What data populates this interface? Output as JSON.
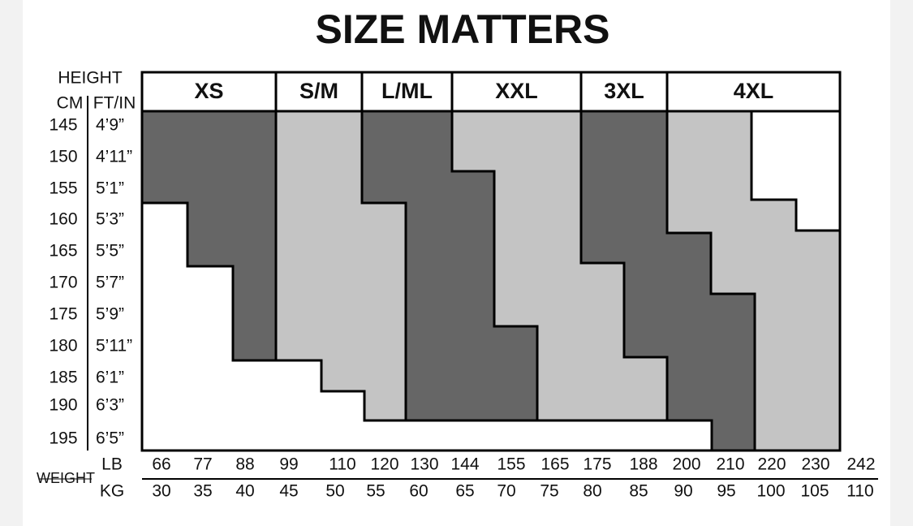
{
  "title": "SIZE MATTERS",
  "height_header": {
    "title": "HEIGHT",
    "cm": "CM",
    "ftin": "FT/IN"
  },
  "heights": {
    "cm": [
      145,
      150,
      155,
      160,
      165,
      170,
      175,
      180,
      185,
      190,
      195
    ],
    "ftin": [
      "4’9”",
      "4’11”",
      "5’1”",
      "5’3”",
      "5’5”",
      "5’7”",
      "5’9”",
      "5’11”",
      "6’1”",
      "6’3”",
      "6’5”"
    ]
  },
  "sizes": [
    "XS",
    "S/M",
    "L/ML",
    "XXL",
    "3XL",
    "4XL"
  ],
  "weight": {
    "title": "WEIGHT",
    "lb_label": "LB",
    "kg_label": "KG",
    "lb": [
      66,
      77,
      88,
      99,
      110,
      120,
      130,
      144,
      155,
      165,
      175,
      188,
      200,
      210,
      220,
      230,
      242
    ],
    "kg": [
      30,
      35,
      40,
      45,
      50,
      55,
      60,
      65,
      70,
      75,
      80,
      85,
      90,
      95,
      100,
      105,
      110
    ]
  }
}
